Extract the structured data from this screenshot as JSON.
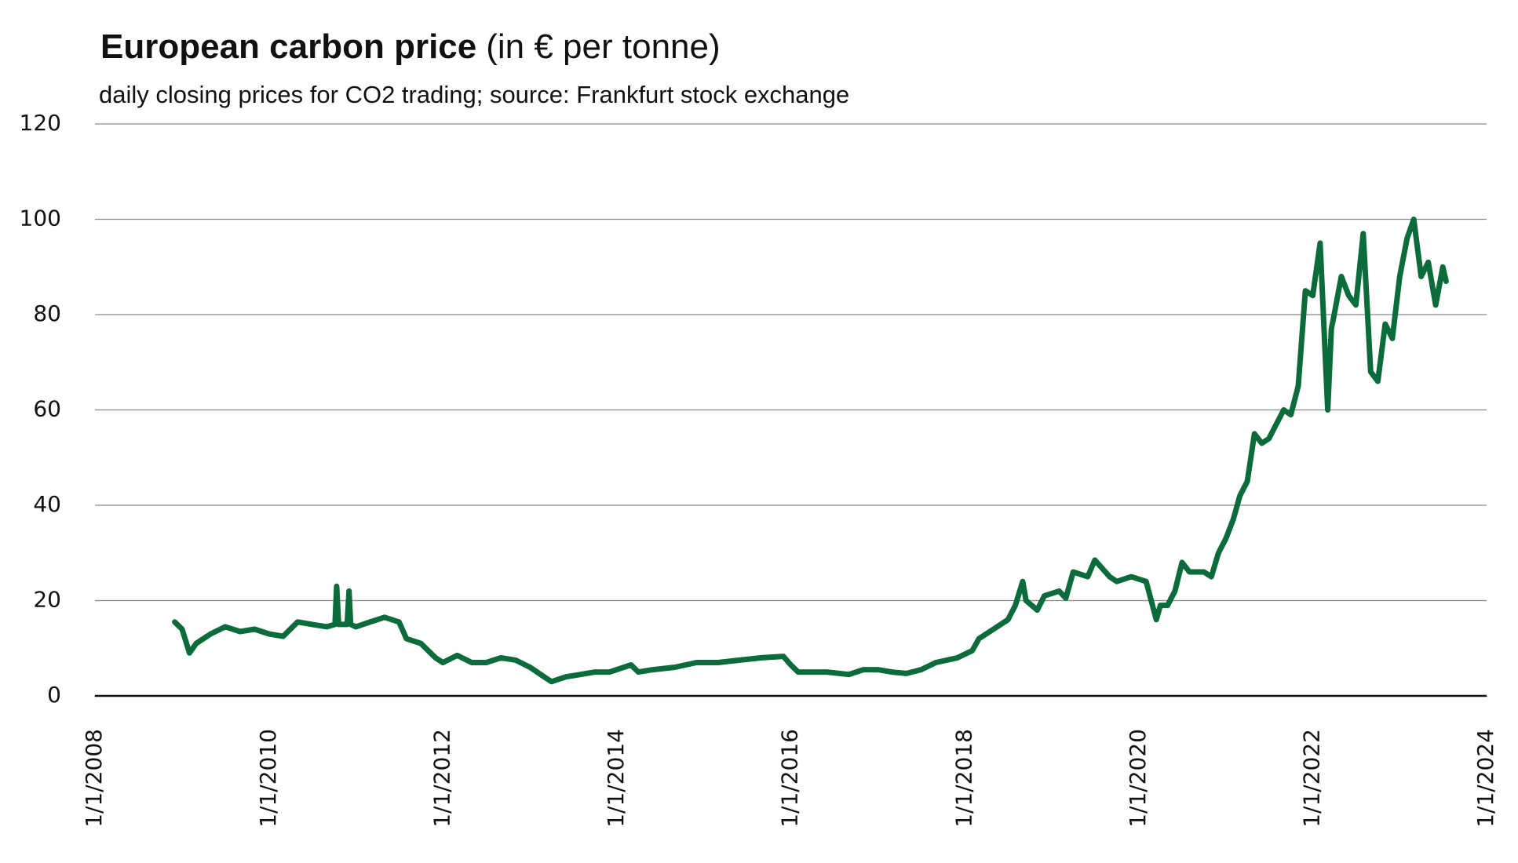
{
  "chart_data": {
    "type": "line",
    "title": "European carbon price",
    "title_unit": "(in € per tonne)",
    "subtitle": "daily closing prices for CO2 trading; source: Frankfurt stock exchange",
    "x": [
      "2008-12-01",
      "2009-01-01",
      "2009-02-01",
      "2009-03-01",
      "2009-05-01",
      "2009-07-01",
      "2009-09-01",
      "2009-11-01",
      "2010-01-01",
      "2010-03-01",
      "2010-05-01",
      "2010-07-01",
      "2010-09-01",
      "2010-10-05",
      "2010-10-12",
      "2010-10-20",
      "2010-11-25",
      "2010-12-03",
      "2010-12-10",
      "2011-01-01",
      "2011-03-01",
      "2011-05-01",
      "2011-07-01",
      "2011-08-01",
      "2011-10-01",
      "2011-12-01",
      "2012-01-01",
      "2012-03-01",
      "2012-05-01",
      "2012-07-01",
      "2012-09-01",
      "2012-11-01",
      "2013-01-01",
      "2013-03-01",
      "2013-04-01",
      "2013-06-01",
      "2013-08-01",
      "2013-10-01",
      "2013-12-01",
      "2014-03-01",
      "2014-04-01",
      "2014-06-01",
      "2014-09-01",
      "2014-12-01",
      "2015-03-01",
      "2015-06-01",
      "2015-09-01",
      "2015-12-01",
      "2016-01-01",
      "2016-02-01",
      "2016-04-01",
      "2016-06-01",
      "2016-09-01",
      "2016-11-01",
      "2017-01-01",
      "2017-03-01",
      "2017-05-01",
      "2017-07-01",
      "2017-09-01",
      "2017-12-01",
      "2018-02-01",
      "2018-03-01",
      "2018-05-01",
      "2018-07-01",
      "2018-08-01",
      "2018-09-01",
      "2018-09-15",
      "2018-11-01",
      "2018-12-01",
      "2019-02-01",
      "2019-03-01",
      "2019-04-01",
      "2019-06-01",
      "2019-07-01",
      "2019-09-01",
      "2019-10-01",
      "2019-12-01",
      "2020-02-01",
      "2020-03-15",
      "2020-04-01",
      "2020-05-01",
      "2020-06-01",
      "2020-07-01",
      "2020-08-01",
      "2020-10-01",
      "2020-11-01",
      "2020-12-01",
      "2021-01-01",
      "2021-02-01",
      "2021-03-01",
      "2021-04-01",
      "2021-05-01",
      "2021-06-01",
      "2021-07-01",
      "2021-08-01",
      "2021-09-01",
      "2021-10-01",
      "2021-11-01",
      "2021-12-01",
      "2022-01-01",
      "2022-02-01",
      "2022-03-05",
      "2022-03-20",
      "2022-04-01",
      "2022-05-01",
      "2022-06-01",
      "2022-07-01",
      "2022-08-01",
      "2022-09-01",
      "2022-10-01",
      "2022-11-01",
      "2022-12-01",
      "2023-01-01",
      "2023-02-01",
      "2023-03-01",
      "2023-04-01",
      "2023-05-01",
      "2023-06-01",
      "2023-07-01",
      "2023-07-15"
    ],
    "series": [
      {
        "name": "closing price",
        "color": "#0b6b3a",
        "values": [
          15.5,
          14,
          9,
          11,
          13,
          14.5,
          13.5,
          14,
          13,
          12.5,
          15.5,
          15,
          14.5,
          15,
          23,
          15,
          15,
          22,
          15,
          14.5,
          15.5,
          16.5,
          15.5,
          12,
          11,
          8,
          7,
          8.5,
          7,
          7,
          8,
          7.5,
          6,
          4,
          3,
          4,
          4.5,
          5,
          5,
          6.5,
          5,
          5.5,
          6,
          7,
          7,
          7.5,
          8,
          8.3,
          6.5,
          5,
          5,
          5,
          4.5,
          5.5,
          5.5,
          5,
          4.7,
          5.5,
          7,
          8,
          9.5,
          12,
          14,
          16,
          19,
          24,
          20,
          18,
          21,
          22,
          20.5,
          26,
          25,
          28.5,
          25,
          24,
          25,
          24,
          16,
          19,
          19,
          22,
          28,
          26,
          26,
          25,
          30,
          33,
          37,
          42,
          45,
          55,
          53,
          54,
          57,
          60,
          59,
          65,
          85,
          84,
          95,
          60,
          77,
          80,
          88,
          84,
          82,
          97,
          68,
          66,
          78,
          75,
          88,
          96,
          100,
          88,
          91,
          82,
          90,
          87
        ]
      }
    ],
    "xlim": [
      "2008-01-01",
      "2024-01-01"
    ],
    "xticks": [
      {
        "value": "2008-01-01",
        "label": "1/1/2008"
      },
      {
        "value": "2010-01-01",
        "label": "1/1/2010"
      },
      {
        "value": "2012-01-01",
        "label": "1/1/2012"
      },
      {
        "value": "2014-01-01",
        "label": "1/1/2014"
      },
      {
        "value": "2016-01-01",
        "label": "1/1/2016"
      },
      {
        "value": "2018-01-01",
        "label": "1/1/2018"
      },
      {
        "value": "2020-01-01",
        "label": "1/1/2020"
      },
      {
        "value": "2022-01-01",
        "label": "1/1/2022"
      },
      {
        "value": "2024-01-01",
        "label": "1/1/2024"
      }
    ],
    "ylim": [
      0,
      120
    ],
    "yticks": [
      0,
      20,
      40,
      60,
      80,
      100,
      120
    ],
    "grid": true
  }
}
